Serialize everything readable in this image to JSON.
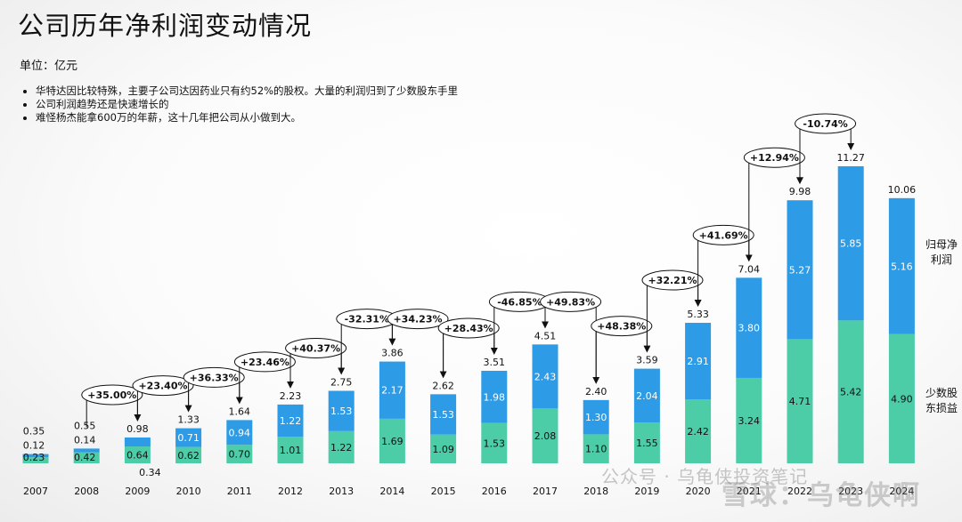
{
  "title": "公司历年净利润变动情况",
  "unit": "单位：亿元",
  "bullets": [
    "华特达因比较特殊，主要子公司达因药业只有约52%的股权。大量的利润归到了少数股东手里",
    "公司利润趋势还是快速增长的",
    "难怪杨杰能拿600万的年薪，这十几年把公司从小做到大。"
  ],
  "watermark": "公众号 · 乌龟侠投资笔记",
  "watermark2": "雪球：乌龟侠啊",
  "colors": {
    "parent": "#2e9be6",
    "minority": "#4dcca8",
    "text": "#111111"
  },
  "chart_data": {
    "type": "bar",
    "stacked": true,
    "categories": [
      "2007",
      "2008",
      "2009",
      "2010",
      "2011",
      "2012",
      "2013",
      "2014",
      "2015",
      "2016",
      "2017",
      "2018",
      "2019",
      "2020",
      "2021",
      "2022",
      "2023",
      "2024"
    ],
    "series": [
      {
        "name": "少数股东损益",
        "values": [
          0.23,
          0.42,
          0.64,
          0.62,
          0.7,
          1.01,
          1.22,
          1.69,
          1.09,
          1.53,
          2.08,
          1.1,
          1.55,
          2.42,
          3.24,
          4.71,
          5.42,
          4.9
        ]
      },
      {
        "name": "归母净利润",
        "values": [
          0.12,
          0.14,
          0.34,
          0.71,
          0.94,
          1.22,
          1.53,
          2.17,
          1.53,
          1.98,
          2.43,
          1.3,
          2.04,
          2.91,
          3.8,
          5.27,
          5.85,
          5.16
        ]
      }
    ],
    "totals": [
      "0.35",
      "0.55",
      "0.98",
      "1.33",
      "1.64",
      "2.23",
      "2.75",
      "3.86",
      "2.62",
      "3.51",
      "4.51",
      "2.40",
      "3.59",
      "5.33",
      "7.04",
      "9.98",
      "11.27",
      "10.06"
    ],
    "minority_labels": [
      "0.23",
      "0.42",
      "0.64",
      "0.62",
      "0.70",
      "1.01",
      "1.22",
      "1.69",
      "1.09",
      "1.53",
      "2.08",
      "1.10",
      "1.55",
      "2.42",
      "3.24",
      "4.71",
      "5.42",
      "4.90"
    ],
    "parent_labels": [
      "0.12",
      "0.14",
      "0.34",
      "0.71",
      "0.94",
      "1.22",
      "1.53",
      "2.17",
      "1.53",
      "1.98",
      "2.43",
      "1.30",
      "2.04",
      "2.91",
      "3.80",
      "5.27",
      "5.85",
      "5.16"
    ],
    "growth": [
      null,
      null,
      "+35.00%",
      "+23.40%",
      "+36.33%",
      "+23.46%",
      "+40.37%",
      "-32.31%",
      "+34.23%",
      "+28.43%",
      "-46.85%",
      "+49.83%",
      "+48.38%",
      "+32.21%",
      "+41.69%",
      "+12.94%",
      "-10.74%",
      null
    ],
    "ylim": [
      0,
      11.5
    ],
    "legend": "right",
    "xlabel": "",
    "ylabel": ""
  }
}
